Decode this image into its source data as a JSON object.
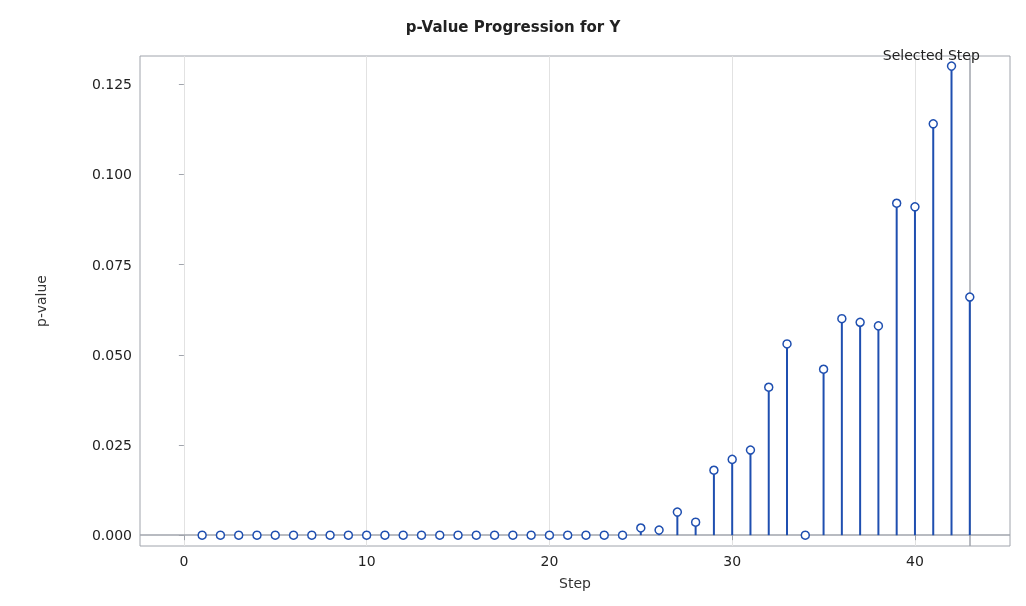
{
  "chart_data": {
    "type": "lollipop",
    "title": "p-Value Progression for Y",
    "xlabel": "Step",
    "ylabel": "p-value",
    "x": [
      1,
      2,
      3,
      4,
      5,
      6,
      7,
      8,
      9,
      10,
      11,
      12,
      13,
      14,
      15,
      16,
      17,
      18,
      19,
      20,
      21,
      22,
      23,
      24,
      25,
      26,
      27,
      28,
      29,
      30,
      31,
      32,
      33,
      34,
      35,
      36,
      37,
      38,
      39,
      40,
      41,
      42,
      43
    ],
    "series": [
      {
        "color": "#1f4fb0",
        "values": [
          0,
          0,
          0,
          0,
          0,
          0,
          0,
          0,
          0,
          0,
          0,
          0,
          0,
          0,
          0,
          0,
          0,
          0,
          0,
          0,
          0,
          0,
          0,
          0,
          0.002,
          0.0014,
          0.0064,
          0.0036,
          0.018,
          0.021,
          0.0236,
          0.041,
          0.053,
          0,
          0.046,
          0.06,
          0.059,
          0.058,
          0.092,
          0.091,
          0.114,
          0.13,
          0.066
        ]
      }
    ],
    "xlim": [
      -2.4,
      45.2
    ],
    "xticks": [
      0,
      10,
      20,
      30,
      40
    ],
    "ylim": [
      -0.003,
      0.1328
    ],
    "yticks": [
      {
        "value": 0,
        "label": "0.000"
      },
      {
        "value": 0.025,
        "label": "0.025"
      },
      {
        "value": 0.05,
        "label": "0.050"
      },
      {
        "value": 0.075,
        "label": "0.075"
      },
      {
        "value": 0.1,
        "label": "0.100"
      },
      {
        "value": 0.125,
        "label": "0.125"
      }
    ],
    "grid": "x",
    "marker": "circle",
    "ref_lines": [
      {
        "axis": "x",
        "value": 43,
        "label": "Selected Step",
        "color": "#a0a4ac"
      },
      {
        "axis": "y",
        "value": 0,
        "label": null,
        "color": "#a0a4ac"
      }
    ]
  }
}
